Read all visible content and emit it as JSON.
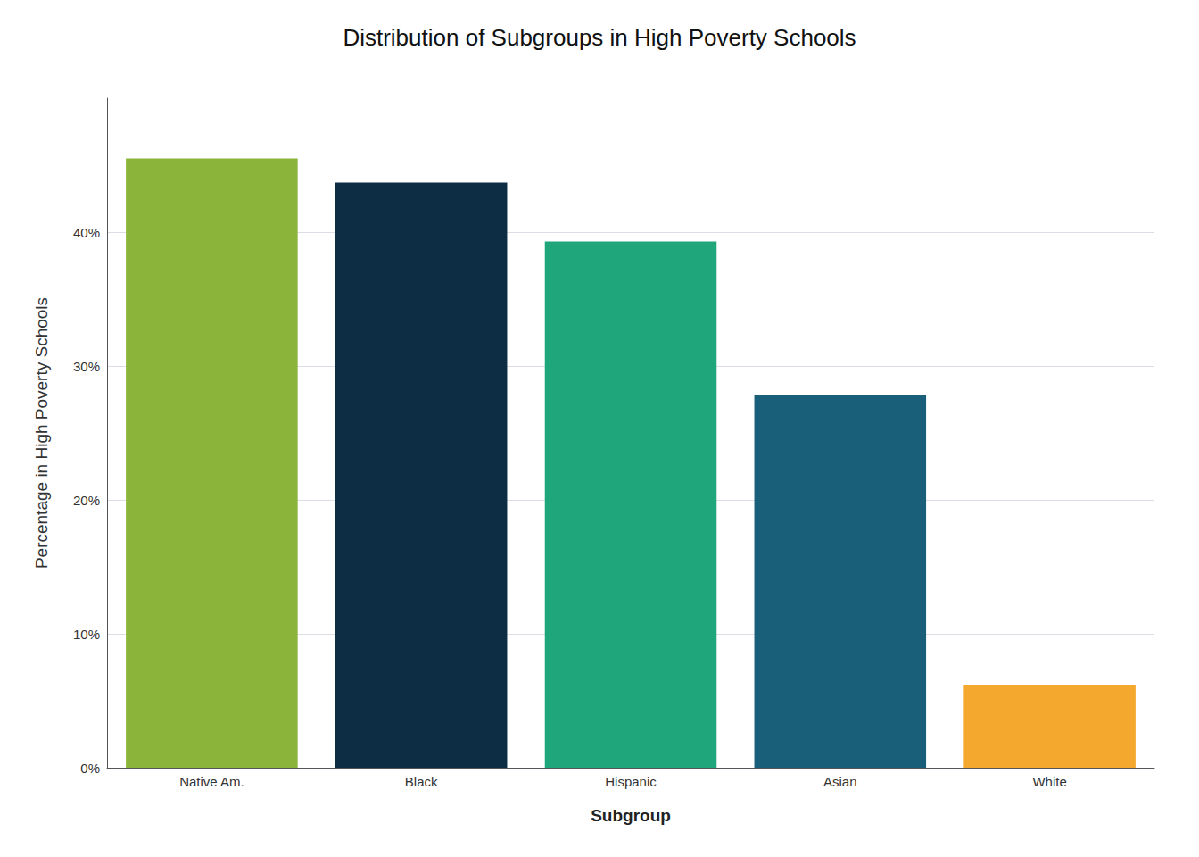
{
  "chart_data": {
    "type": "bar",
    "title": "Distribution of Subgroups in High Poverty Schools",
    "categories": [
      "Native Am.",
      "Black",
      "Hispanic",
      "Asian",
      "White"
    ],
    "values": [
      45.5,
      43.7,
      39.3,
      27.8,
      6.2
    ],
    "colors": [
      "#8ab53a",
      "#0d2d45",
      "#1fa67a",
      "#1a5f7a",
      "#f5a82e"
    ],
    "xlabel": "Subgroup",
    "ylabel": "Percentage in High Poverty Schools",
    "ylim": [
      0,
      50
    ],
    "yticks": [
      {
        "value": 0,
        "label": "0%"
      },
      {
        "value": 10,
        "label": "10%"
      },
      {
        "value": 20,
        "label": "20%"
      },
      {
        "value": 30,
        "label": "30%"
      },
      {
        "value": 40,
        "label": "40%"
      }
    ],
    "grid": true
  }
}
